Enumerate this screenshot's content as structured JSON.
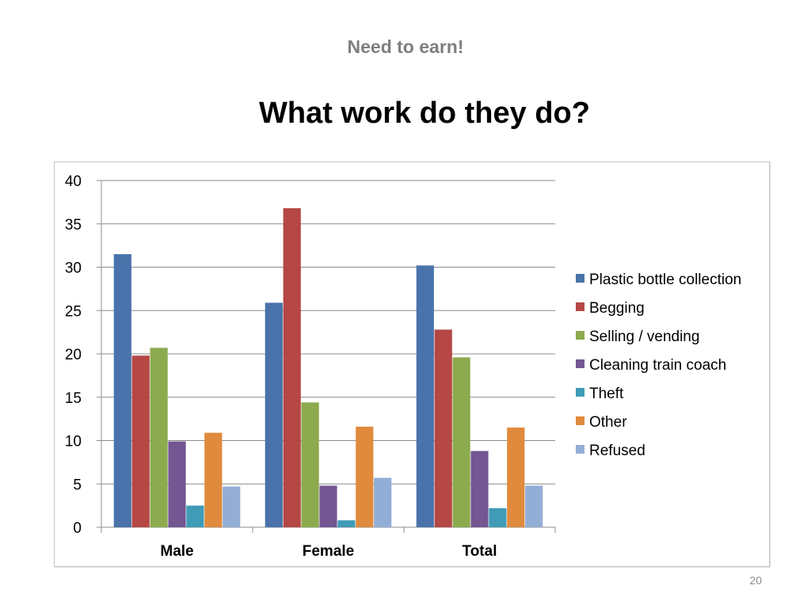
{
  "slide": {
    "header": "Need to earn!",
    "title": "What work do they do?",
    "page_number": "20"
  },
  "chart_data": {
    "type": "bar",
    "categories": [
      "Male",
      "Female",
      "Total"
    ],
    "series": [
      {
        "name": "Plastic bottle collection",
        "color": "#4a73ab",
        "values": [
          31.5,
          25.9,
          30.2
        ]
      },
      {
        "name": "Begging",
        "color": "#b54745",
        "values": [
          19.8,
          36.8,
          22.8
        ]
      },
      {
        "name": "Selling / vending",
        "color": "#8caa4e",
        "values": [
          20.7,
          14.4,
          19.6
        ]
      },
      {
        "name": "Cleaning train coach",
        "color": "#735692",
        "values": [
          9.9,
          4.8,
          8.8
        ]
      },
      {
        "name": "Theft",
        "color": "#3f9bb6",
        "values": [
          2.5,
          0.8,
          2.2
        ]
      },
      {
        "name": "Other",
        "color": "#e08a3d",
        "values": [
          10.9,
          11.6,
          11.5
        ]
      },
      {
        "name": "Refused",
        "color": "#93aed6",
        "values": [
          4.7,
          5.7,
          4.8
        ]
      }
    ],
    "yticks": [
      "0",
      "5",
      "10",
      "15",
      "20",
      "25",
      "30",
      "35",
      "40"
    ],
    "ylim": [
      0,
      40
    ],
    "grid": true,
    "legend_position": "right"
  }
}
